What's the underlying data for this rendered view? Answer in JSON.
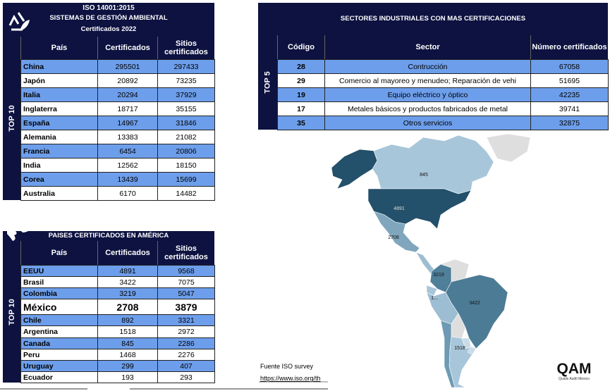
{
  "table1": {
    "title": [
      "ISO 14001:2015",
      "SISTEMAS DE GESTIÓN AMBIENTAL",
      "Certificados 2022"
    ],
    "side_label": "TOP 10",
    "headers": [
      "País",
      "Certificados",
      "Sitios certificados"
    ],
    "rows": [
      [
        "China",
        295501,
        297433
      ],
      [
        "Japón",
        20892,
        73235
      ],
      [
        "Italia",
        20294,
        37929
      ],
      [
        "Inglaterra",
        18717,
        35155
      ],
      [
        "España",
        14967,
        31846
      ],
      [
        "Alemania",
        13383,
        21082
      ],
      [
        "Francia",
        6454,
        20806
      ],
      [
        "India",
        12562,
        18150
      ],
      [
        "Corea",
        13439,
        15699
      ],
      [
        "Australia",
        6170,
        14482
      ]
    ]
  },
  "table2": {
    "title": [
      "SECTORES INDUSTRIALES CON MAS CERTIFICACIONES"
    ],
    "side_label": "TOP 5",
    "headers": [
      "Código",
      "Sector",
      "Número certificados"
    ],
    "rows": [
      [
        28,
        "Contrucción",
        67058
      ],
      [
        29,
        "Comercio al mayoreo y menudeo; Reparación de vehi",
        51695
      ],
      [
        19,
        "Equipo eléctrico y óptico",
        42235
      ],
      [
        17,
        "Metales básicos y productos fabricados de metal",
        39741
      ],
      [
        35,
        "Otros servicios",
        32875
      ]
    ]
  },
  "table3": {
    "title": [
      "PAISES CERTIFICADOS EN AMÉRICA"
    ],
    "side_label": "TOP 10",
    "headers": [
      "País",
      "Certificados",
      "Sitios certificados"
    ],
    "rows": [
      [
        "EEUU",
        4891,
        9568
      ],
      [
        "Brasil",
        3422,
        7075
      ],
      [
        "Colombia",
        3219,
        5047
      ],
      [
        "México",
        2708,
        3879
      ],
      [
        "Chile",
        892,
        3321
      ],
      [
        "Argentina",
        1518,
        2972
      ],
      [
        "Canada",
        845,
        2286
      ],
      [
        "Peru",
        1468,
        2276
      ],
      [
        "Uruguay",
        299,
        407
      ],
      [
        "Ecuador",
        193,
        293
      ]
    ]
  },
  "map": {
    "labels": [
      "845",
      "4891",
      "2708",
      "3219",
      "1...",
      "3422",
      "1518"
    ]
  },
  "source": {
    "text": "Fuente ISO survey",
    "url": "https://www.iso.org/th"
  },
  "logo": {
    "mark": "QAM",
    "name": "Qualis Audit Mexico"
  }
}
